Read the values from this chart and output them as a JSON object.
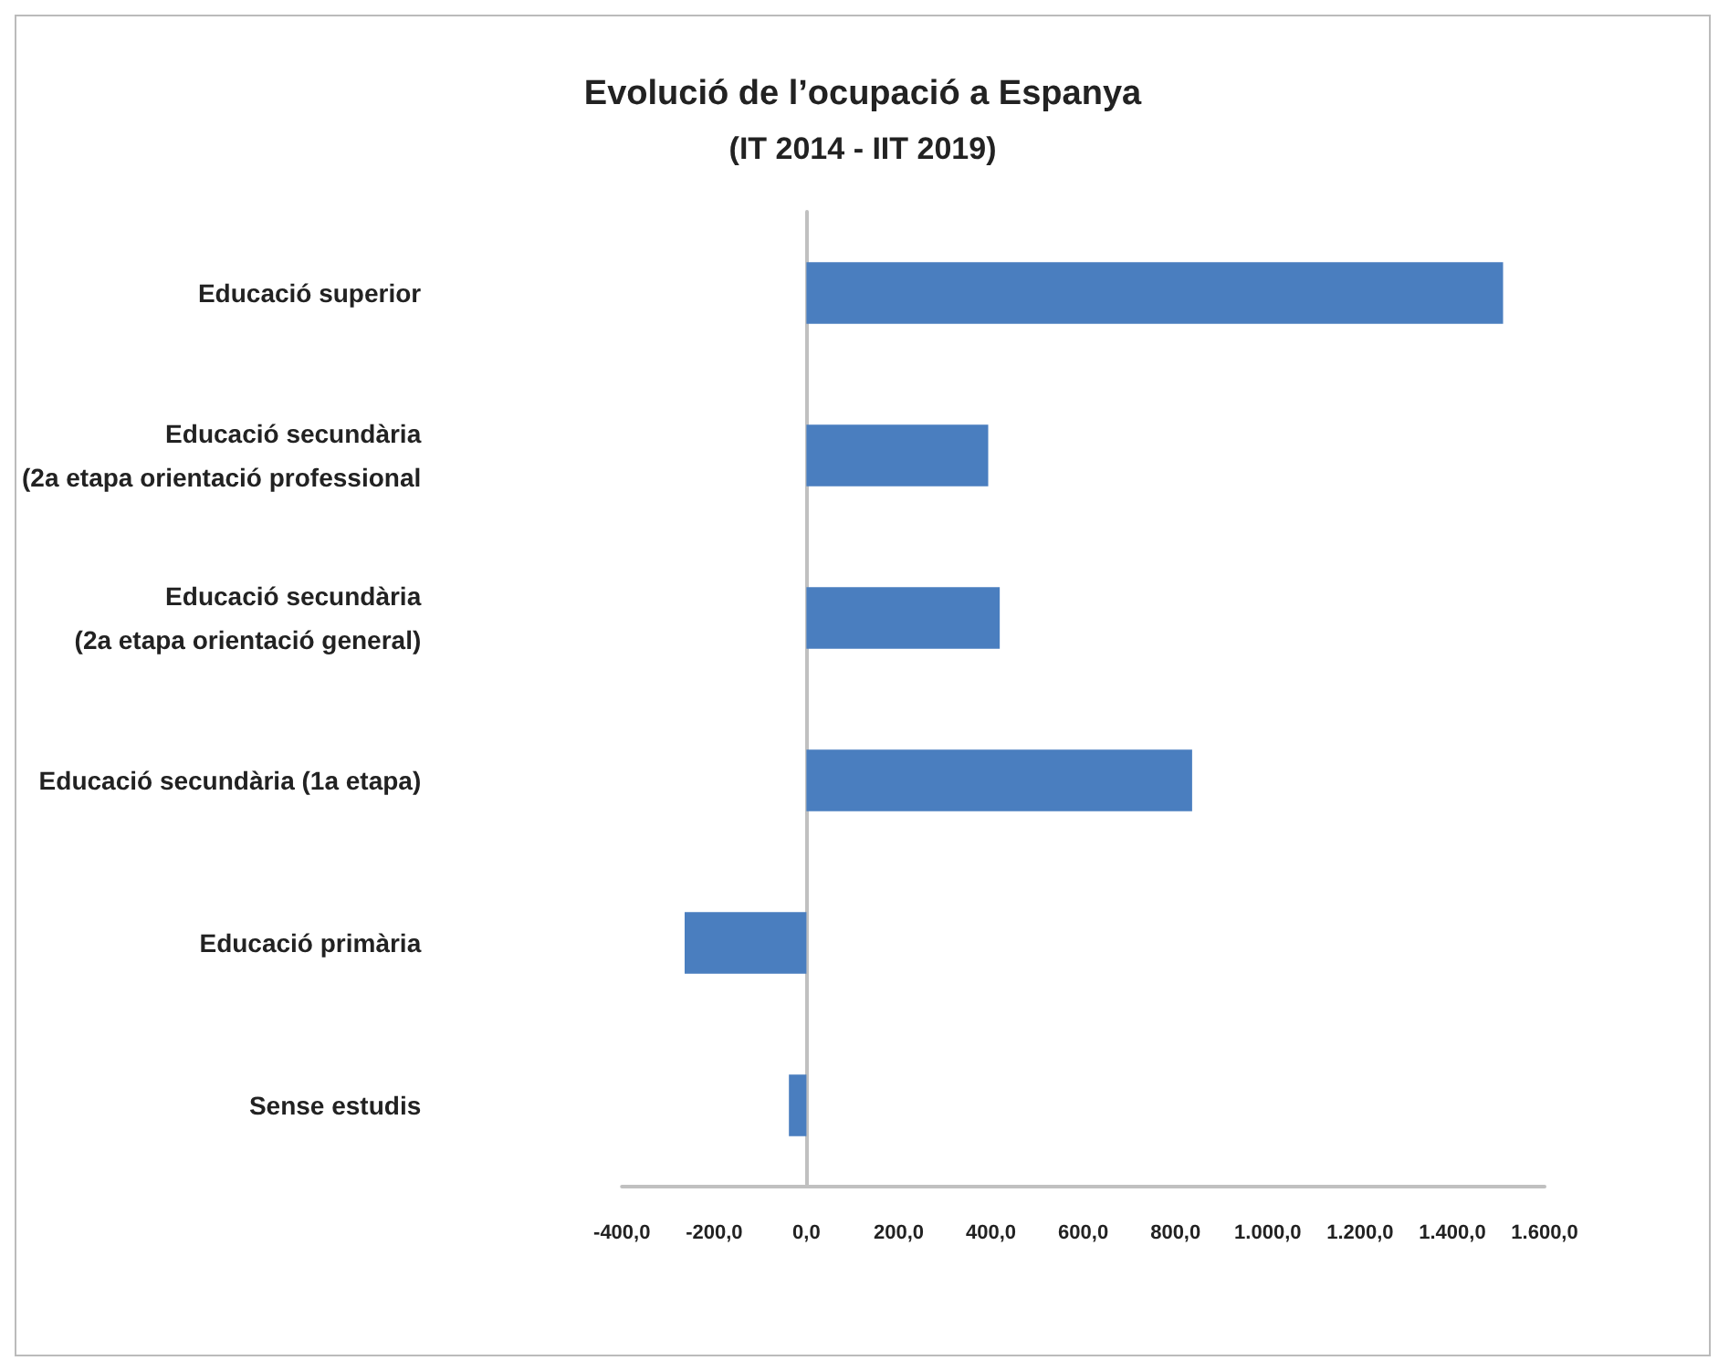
{
  "chart_data": {
    "type": "bar",
    "orientation": "horizontal",
    "title": "Evolució de l’ocupació a Espanya",
    "subtitle": "(IT 2014 - IIT 2019)",
    "categories": [
      "Educació superior",
      "Educació secundària\n(2a etapa orientació professional",
      "Educació secundària\n(2a etapa orientació general)",
      "Educació secundària (1a etapa)",
      "Educació primària",
      "Sense estudis"
    ],
    "values": [
      1510,
      394,
      419,
      836,
      -264,
      -38
    ],
    "color": "#4a7ebf",
    "xlim": [
      -400,
      1600
    ],
    "xticks": [
      {
        "value": -400,
        "label": "-400,0"
      },
      {
        "value": -200,
        "label": "-200,0"
      },
      {
        "value": 0,
        "label": "0,0"
      },
      {
        "value": 200,
        "label": "200,0"
      },
      {
        "value": 400,
        "label": "400,0"
      },
      {
        "value": 600,
        "label": "600,0"
      },
      {
        "value": 800,
        "label": "800,0"
      },
      {
        "value": 1000,
        "label": "1.000,0"
      },
      {
        "value": 1200,
        "label": "1.200,0"
      },
      {
        "value": 1400,
        "label": "1.400,0"
      },
      {
        "value": 1600,
        "label": "1.600,0"
      }
    ],
    "data_labels": false
  }
}
